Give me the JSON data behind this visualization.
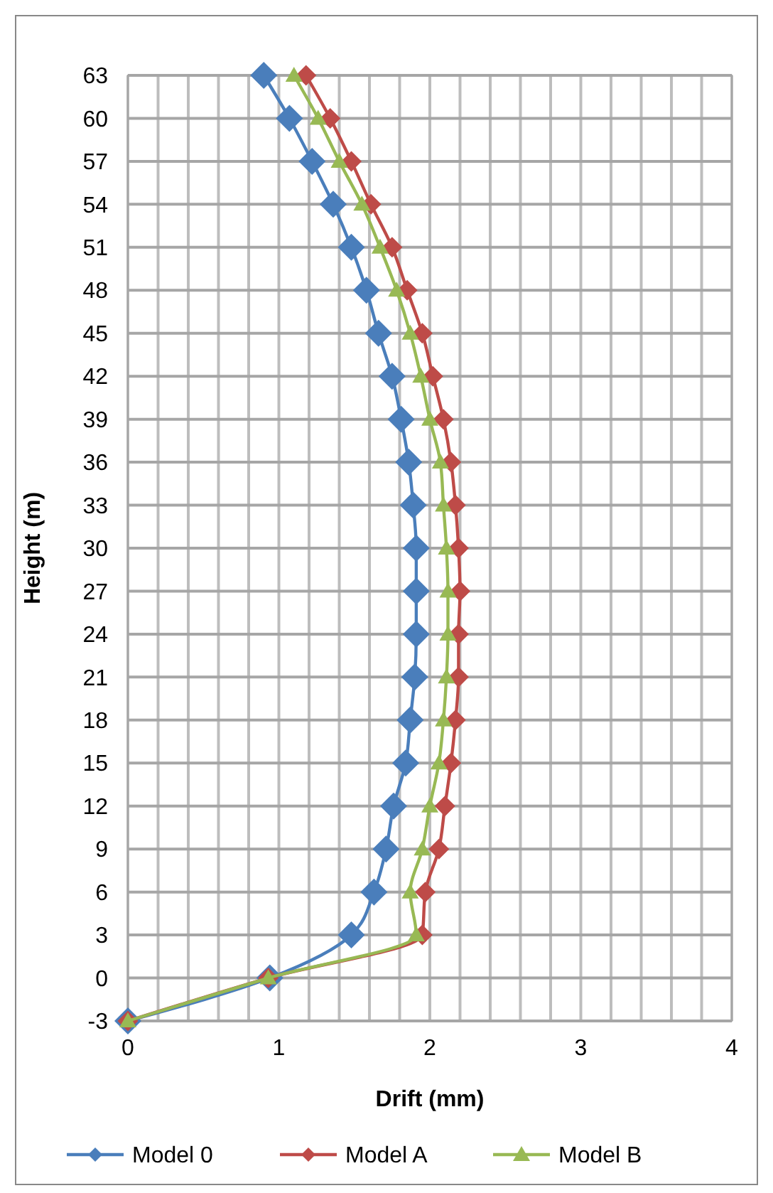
{
  "chart_data": {
    "type": "line",
    "xlabel": "Drift (mm)",
    "ylabel": "Height (m)",
    "xlim": [
      0,
      4
    ],
    "xticks": [
      0,
      {
        "value": 0.2,
        "label": null
      },
      {
        "value": 0.4,
        "label": null
      },
      {
        "value": 0.6,
        "label": null
      },
      {
        "value": 0.8,
        "label": null
      },
      1,
      {
        "value": 1.2,
        "label": null
      },
      {
        "value": 1.4,
        "label": null
      },
      {
        "value": 1.6,
        "label": null
      },
      {
        "value": 1.8,
        "label": null
      },
      2,
      {
        "value": 2.2,
        "label": null
      },
      {
        "value": 2.4,
        "label": null
      },
      {
        "value": 2.6,
        "label": null
      },
      {
        "value": 2.8,
        "label": null
      },
      3,
      {
        "value": 3.2,
        "label": null
      },
      {
        "value": 3.4,
        "label": null
      },
      {
        "value": 3.6,
        "label": null
      },
      {
        "value": 3.8,
        "label": null
      },
      4
    ],
    "ylim": [
      -3,
      63
    ],
    "yticks": [
      -3,
      0,
      3,
      6,
      9,
      12,
      15,
      18,
      21,
      24,
      27,
      30,
      33,
      36,
      39,
      42,
      45,
      48,
      51,
      54,
      57,
      60,
      63
    ],
    "grid": true,
    "legend": "bottom",
    "series": [
      {
        "name": "Model 0",
        "color": "#4a7ebb",
        "marker": "diamond",
        "x": [
          0,
          0.94,
          1.48,
          1.63,
          1.71,
          1.76,
          1.84,
          1.87,
          1.9,
          1.91,
          1.91,
          1.91,
          1.89,
          1.86,
          1.81,
          1.75,
          1.66,
          1.58,
          1.48,
          1.36,
          1.22,
          1.07,
          0.9
        ],
        "values": [
          -3,
          0,
          3,
          6,
          9,
          12,
          15,
          18,
          21,
          24,
          27,
          30,
          33,
          36,
          39,
          42,
          45,
          48,
          51,
          54,
          57,
          60,
          63
        ]
      },
      {
        "name": "Model A",
        "color": "#be4b48",
        "marker": "diamond",
        "x": [
          0,
          0.93,
          1.95,
          1.97,
          2.06,
          2.1,
          2.14,
          2.17,
          2.19,
          2.19,
          2.2,
          2.19,
          2.17,
          2.14,
          2.09,
          2.02,
          1.95,
          1.85,
          1.75,
          1.61,
          1.48,
          1.34,
          1.18
        ],
        "values": [
          -3,
          0,
          3,
          6,
          9,
          12,
          15,
          18,
          21,
          24,
          27,
          30,
          33,
          36,
          39,
          42,
          45,
          48,
          51,
          54,
          57,
          60,
          63
        ]
      },
      {
        "name": "Model B",
        "color": "#98b954",
        "marker": "triangle",
        "x": [
          0,
          0.93,
          1.91,
          1.87,
          1.95,
          2,
          2.06,
          2.09,
          2.11,
          2.12,
          2.12,
          2.11,
          2.09,
          2.07,
          2,
          1.94,
          1.87,
          1.78,
          1.67,
          1.55,
          1.4,
          1.26,
          1.1
        ],
        "values": [
          -3,
          0,
          3,
          6,
          9,
          12,
          15,
          18,
          21,
          24,
          27,
          30,
          33,
          36,
          39,
          42,
          45,
          48,
          51,
          54,
          57,
          60,
          63
        ]
      }
    ]
  }
}
